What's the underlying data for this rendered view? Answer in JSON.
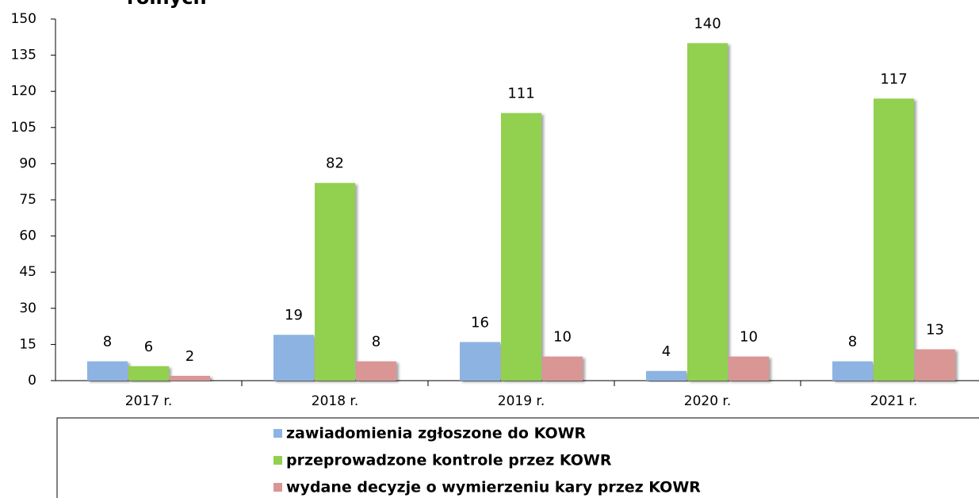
{
  "chart_data": {
    "type": "bar",
    "title": "rolnych",
    "categories": [
      "2017 r.",
      "2018 r.",
      "2019 r.",
      "2020 r.",
      "2021 r."
    ],
    "series": [
      {
        "name": "zawiadomienia zgłoszone do KOWR",
        "color": "#8db3e2",
        "values": [
          8,
          19,
          16,
          4,
          8
        ]
      },
      {
        "name": "przeprowadzone kontrole przez KOWR",
        "color": "#92d050",
        "values": [
          6,
          82,
          111,
          140,
          117
        ]
      },
      {
        "name": "wydane decyzje o wymierzeniu kary przez KOWR",
        "color": "#d99694",
        "values": [
          2,
          8,
          10,
          10,
          13
        ]
      }
    ],
    "ylim": [
      0,
      150
    ],
    "yticks": [
      0,
      15,
      30,
      45,
      60,
      75,
      90,
      105,
      120,
      135,
      150
    ],
    "grid": false,
    "legend": "bottom"
  }
}
